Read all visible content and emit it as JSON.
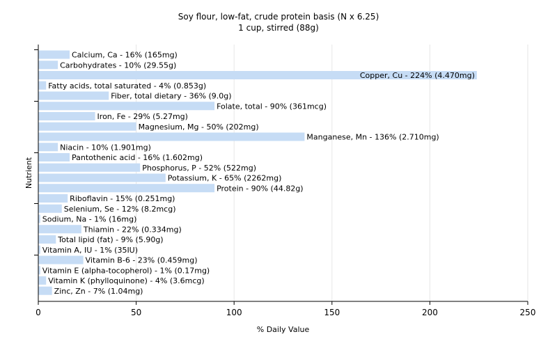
{
  "chart_data": {
    "type": "bar",
    "orientation": "horizontal",
    "title": "Soy flour, low-fat, crude protein basis (N x 6.25)",
    "subtitle": "1 cup, stirred (88g)",
    "xlabel": "% Daily Value",
    "ylabel": "Nutrient",
    "xlim": [
      0,
      250
    ],
    "xticks": [
      0,
      50,
      100,
      150,
      200,
      250
    ],
    "grid": "vertical",
    "bar_color": "#c6dcf5",
    "categories": [
      "Calcium, Ca",
      "Carbohydrates",
      "Copper, Cu",
      "Fatty acids, total saturated",
      "Fiber, total dietary",
      "Folate, total",
      "Iron, Fe",
      "Magnesium, Mg",
      "Manganese, Mn",
      "Niacin",
      "Pantothenic acid",
      "Phosphorus, P",
      "Potassium, K",
      "Protein",
      "Riboflavin",
      "Selenium, Se",
      "Sodium, Na",
      "Thiamin",
      "Total lipid (fat)",
      "Vitamin A, IU",
      "Vitamin B-6",
      "Vitamin E (alpha-tocopherol)",
      "Vitamin K (phylloquinone)",
      "Zinc, Zn"
    ],
    "values": [
      16,
      10,
      224,
      4,
      36,
      90,
      29,
      50,
      136,
      10,
      16,
      52,
      65,
      90,
      15,
      12,
      1,
      22,
      9,
      1,
      23,
      1,
      4,
      7
    ],
    "labels": [
      "Calcium, Ca - 16% (165mg)",
      "Carbohydrates - 10% (29.55g)",
      "Copper, Cu - 224% (4.470mg)",
      "Fatty acids, total saturated - 4% (0.853g)",
      "Fiber, total dietary - 36% (9.0g)",
      "Folate, total - 90% (361mcg)",
      "Iron, Fe - 29% (5.27mg)",
      "Magnesium, Mg - 50% (202mg)",
      "Manganese, Mn - 136% (2.710mg)",
      "Niacin - 10% (1.901mg)",
      "Pantothenic acid - 16% (1.602mg)",
      "Phosphorus, P - 52% (522mg)",
      "Potassium, K - 65% (2262mg)",
      "Protein - 90% (44.82g)",
      "Riboflavin - 15% (0.251mg)",
      "Selenium, Se - 12% (8.2mcg)",
      "Sodium, Na - 1% (16mg)",
      "Thiamin - 22% (0.334mg)",
      "Total lipid (fat) - 9% (5.90g)",
      "Vitamin A, IU - 1% (35IU)",
      "Vitamin B-6 - 23% (0.459mg)",
      "Vitamin E (alpha-tocopherol) - 1% (0.17mg)",
      "Vitamin K (phylloquinone) - 4% (3.6mcg)",
      "Zinc, Zn - 7% (1.04mg)"
    ]
  }
}
